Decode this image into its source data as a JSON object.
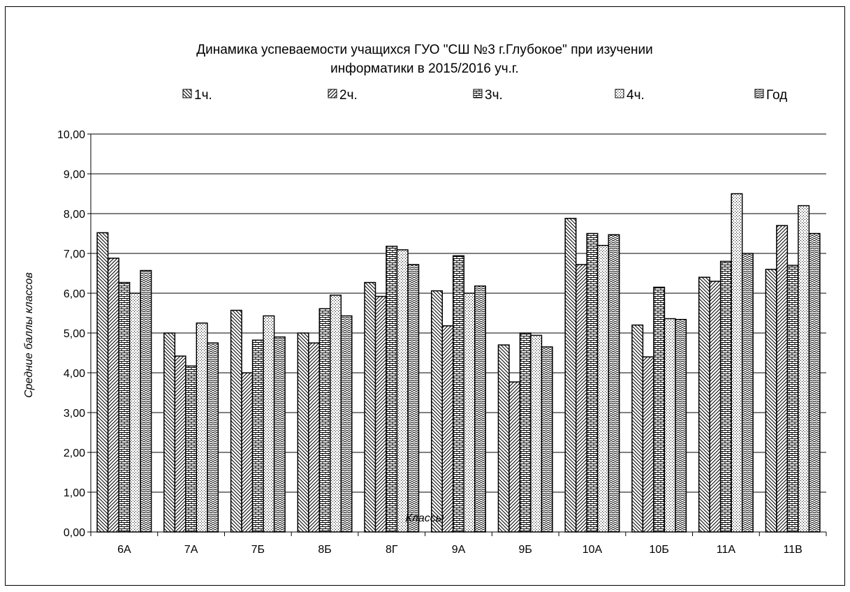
{
  "chart_data": {
    "type": "bar",
    "title": "Динамика успеваемости учащихся ГУО \"СШ №3 г.Глубокое\" при изучении",
    "title_line2": "информатики в 2015/2016 уч.г.",
    "xlabel": "Классы",
    "ylabel": "Средние баллы классов",
    "ylim": [
      0,
      10
    ],
    "ytick_step": 1,
    "ytick_labels": [
      "0,00",
      "1,00",
      "2,00",
      "3,00",
      "4,00",
      "5,00",
      "6,00",
      "7,00",
      "8,00",
      "9,00",
      "10,00"
    ],
    "grid": true,
    "legend_position": "top",
    "categories": [
      "6А",
      "7А",
      "7Б",
      "8Б",
      "8Г",
      "9А",
      "9Б",
      "10А",
      "10Б",
      "11А",
      "11В"
    ],
    "series": [
      {
        "name": "1ч.",
        "pattern": "diag-back",
        "values": [
          7.52,
          5.0,
          5.57,
          5.0,
          6.27,
          6.06,
          4.7,
          7.88,
          5.2,
          6.4,
          6.6
        ]
      },
      {
        "name": "2ч.",
        "pattern": "diag-fwd",
        "values": [
          6.88,
          4.42,
          4.0,
          4.75,
          5.92,
          5.18,
          3.77,
          6.72,
          4.4,
          6.3,
          7.7
        ]
      },
      {
        "name": "3ч.",
        "pattern": "brick",
        "values": [
          6.27,
          4.17,
          4.82,
          5.61,
          7.18,
          6.94,
          5.0,
          7.5,
          6.15,
          6.8,
          6.7
        ]
      },
      {
        "name": "4ч.",
        "pattern": "dots",
        "values": [
          6.0,
          5.25,
          5.43,
          5.95,
          7.09,
          6.0,
          4.94,
          7.2,
          5.36,
          8.5,
          8.2
        ]
      },
      {
        "name": "Год",
        "pattern": "zigzag",
        "values": [
          6.57,
          4.75,
          4.9,
          5.43,
          6.72,
          6.18,
          4.65,
          7.47,
          5.34,
          7.0,
          7.5
        ]
      }
    ]
  }
}
